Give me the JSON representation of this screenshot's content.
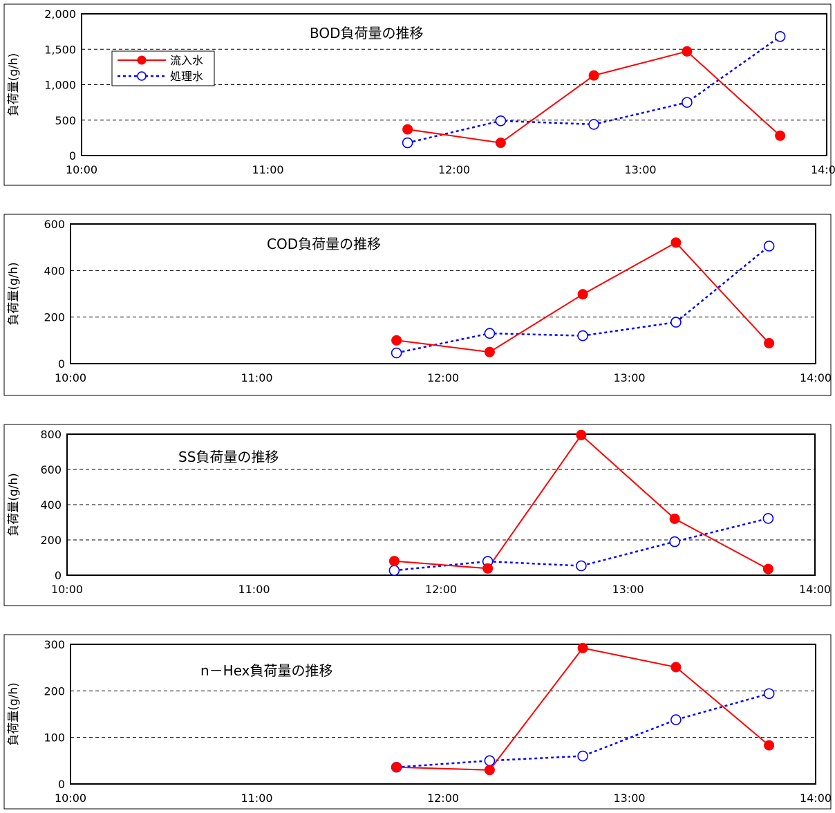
{
  "legend": {
    "placement": "top-left of first chart"
  },
  "colors": {
    "inflow": "#ff0000",
    "treated": "#0000ff",
    "grid": "#000000",
    "frame": "#000000"
  },
  "chart_data": [
    {
      "type": "line",
      "title": "BOD負荷量の推移",
      "ylabel": "負荷量(g/h)",
      "ylim": [
        0,
        2000
      ],
      "yticks": [
        0,
        500,
        1000,
        1500,
        2000
      ],
      "ytick_labels": [
        "0",
        "500",
        "1,000",
        "1,500",
        "2,000"
      ],
      "xlim": [
        "10:00",
        "14:00"
      ],
      "xtick_labels": [
        "10:00",
        "11:00",
        "12:00",
        "13:00",
        "14:00"
      ],
      "grid": "horizontal dashed",
      "show_legend": true,
      "x": [
        "11:45",
        "12:15",
        "12:45",
        "13:15",
        "13:45"
      ],
      "series": [
        {
          "name": "流入水",
          "values": [
            370,
            180,
            1130,
            1470,
            280
          ]
        },
        {
          "name": "処理水",
          "values": [
            180,
            490,
            440,
            750,
            1680
          ]
        }
      ]
    },
    {
      "type": "line",
      "title": "COD負荷量の推移",
      "ylabel": "負荷量(g/h)",
      "ylim": [
        0,
        600
      ],
      "yticks": [
        0,
        200,
        400,
        600
      ],
      "ytick_labels": [
        "0",
        "200",
        "400",
        "600"
      ],
      "xlim": [
        "10:00",
        "14:00"
      ],
      "xtick_labels": [
        "10:00",
        "11:00",
        "12:00",
        "13:00",
        "14:00"
      ],
      "grid": "horizontal dashed",
      "show_legend": false,
      "x": [
        "11:45",
        "12:15",
        "12:45",
        "13:15",
        "13:45"
      ],
      "series": [
        {
          "values": [
            100,
            50,
            298,
            520,
            88
          ]
        },
        {
          "values": [
            46,
            130,
            120,
            178,
            505
          ]
        }
      ]
    },
    {
      "type": "line",
      "title": "SS負荷量の推移",
      "ylabel": "負荷量(g/h)",
      "ylim": [
        0,
        800
      ],
      "yticks": [
        0,
        200,
        400,
        600,
        800
      ],
      "ytick_labels": [
        "0",
        "200",
        "400",
        "600",
        "800"
      ],
      "xlim": [
        "10:00",
        "14:00"
      ],
      "xtick_labels": [
        "10:00",
        "11:00",
        "12:00",
        "13:00",
        "14:00"
      ],
      "grid": "horizontal dashed",
      "show_legend": false,
      "x": [
        "11:45",
        "12:15",
        "12:45",
        "13:15",
        "13:45"
      ],
      "series": [
        {
          "values": [
            80,
            38,
            795,
            320,
            35
          ]
        },
        {
          "values": [
            27,
            78,
            53,
            190,
            322
          ]
        }
      ]
    },
    {
      "type": "line",
      "title": "n－Hex負荷量の推移",
      "ylabel": "負荷量(g/h)",
      "ylim": [
        0,
        300
      ],
      "yticks": [
        0,
        100,
        200,
        300
      ],
      "ytick_labels": [
        "0",
        "100",
        "200",
        "300"
      ],
      "xlim": [
        "10:00",
        "14:00"
      ],
      "xtick_labels": [
        "10:00",
        "11:00",
        "12:00",
        "13:00",
        "14:00"
      ],
      "grid": "horizontal dashed",
      "show_legend": false,
      "x": [
        "11:45",
        "12:15",
        "12:45",
        "13:15",
        "13:45"
      ],
      "series": [
        {
          "values": [
            36,
            30,
            292,
            251,
            83
          ]
        },
        {
          "values": [
            36,
            50,
            60,
            138,
            194
          ]
        }
      ]
    }
  ]
}
